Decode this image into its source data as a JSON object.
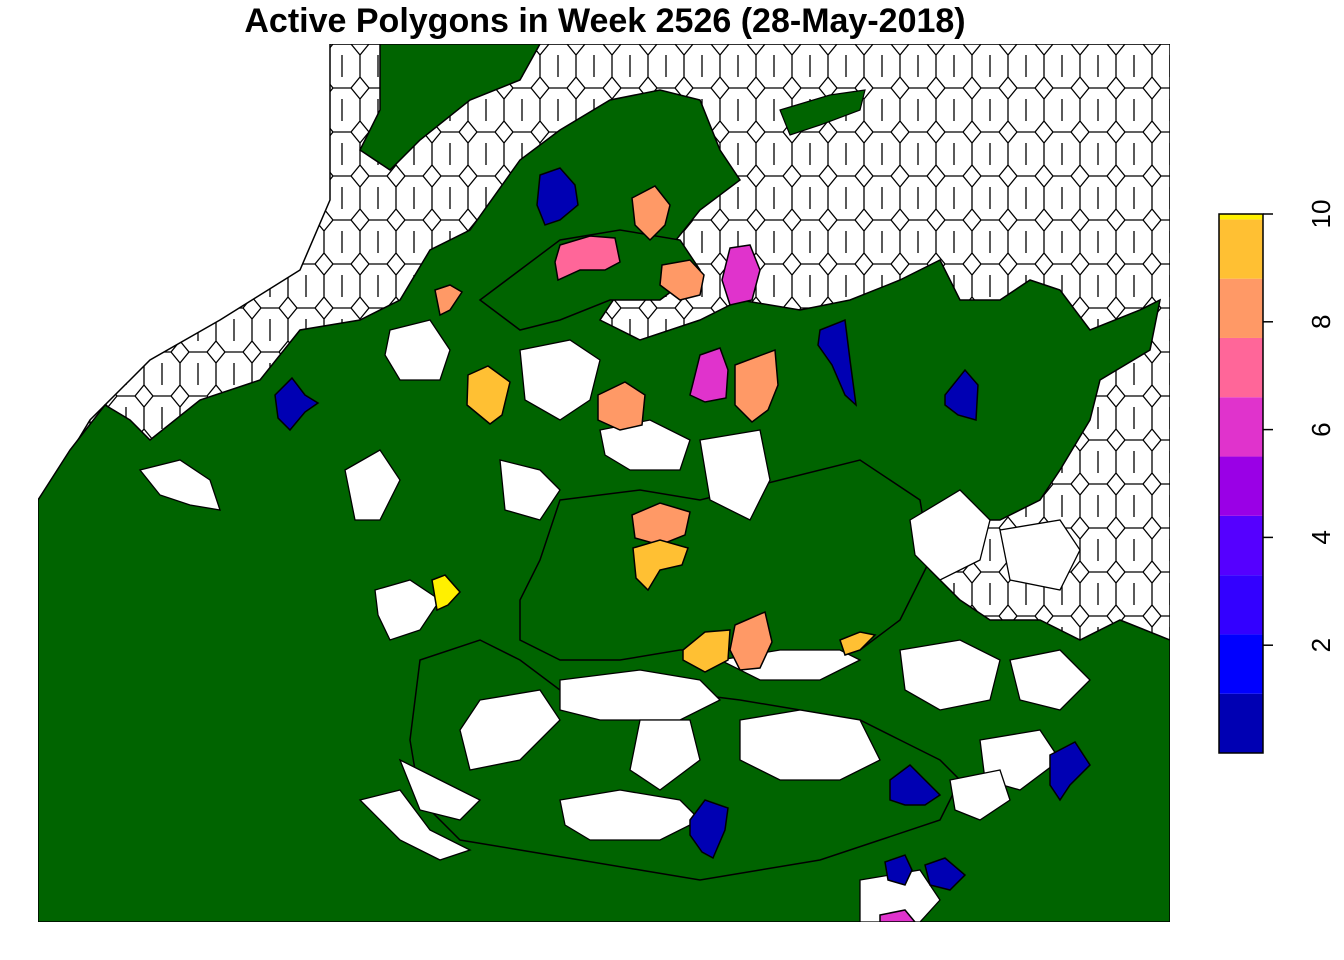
{
  "title": "Active Polygons in Week 2526 (28-May-2018)",
  "colors": {
    "background_land": "#006400",
    "inactive_polygon": "#ffffff",
    "outline": "#000000"
  },
  "legend": {
    "type": "color-bar",
    "placement": "right",
    "range": [
      0,
      10
    ],
    "ticks": [
      "2",
      "4",
      "6",
      "8",
      "10"
    ],
    "tick_values": [
      2,
      4,
      6,
      8,
      10
    ],
    "bins": [
      {
        "from": 0,
        "to": 1.1,
        "color": "#0000B3"
      },
      {
        "from": 1.1,
        "to": 2.2,
        "color": "#0000FF"
      },
      {
        "from": 2.2,
        "to": 3.3,
        "color": "#3300FF"
      },
      {
        "from": 3.3,
        "to": 4.4,
        "color": "#5500FF"
      },
      {
        "from": 4.4,
        "to": 5.5,
        "color": "#9A00E6"
      },
      {
        "from": 5.5,
        "to": 6.6,
        "color": "#E033CC"
      },
      {
        "from": 6.6,
        "to": 7.7,
        "color": "#FF6699"
      },
      {
        "from": 7.7,
        "to": 8.8,
        "color": "#FF9966"
      },
      {
        "from": 8.8,
        "to": 9.9,
        "color": "#FFC033"
      },
      {
        "from": 9.9,
        "to": 10.5,
        "color": "#FFF000"
      }
    ]
  },
  "active_polygons": [
    {
      "value": 1,
      "color": "#0000B3"
    },
    {
      "value": 1,
      "color": "#0000B3"
    },
    {
      "value": 1,
      "color": "#0000B3"
    },
    {
      "value": 1,
      "color": "#0000B3"
    },
    {
      "value": 1,
      "color": "#0000B3"
    },
    {
      "value": 1,
      "color": "#0000B3"
    },
    {
      "value": 1,
      "color": "#0000B3"
    },
    {
      "value": 1,
      "color": "#0000B3"
    },
    {
      "value": 1,
      "color": "#0000B3"
    },
    {
      "value": 5,
      "color": "#E033CC"
    },
    {
      "value": 5,
      "color": "#E033CC"
    },
    {
      "value": 5,
      "color": "#E033CC"
    },
    {
      "value": 6,
      "color": "#FF6699"
    },
    {
      "value": 7,
      "color": "#FF9966"
    },
    {
      "value": 7,
      "color": "#FF9966"
    },
    {
      "value": 7,
      "color": "#FF9966"
    },
    {
      "value": 7,
      "color": "#FF9966"
    },
    {
      "value": 7,
      "color": "#FF9966"
    },
    {
      "value": 7,
      "color": "#FF9966"
    },
    {
      "value": 7,
      "color": "#FF9966"
    },
    {
      "value": 8,
      "color": "#FFC033"
    },
    {
      "value": 8,
      "color": "#FFC033"
    },
    {
      "value": 8,
      "color": "#FFC033"
    },
    {
      "value": 8,
      "color": "#FFC033"
    },
    {
      "value": 10,
      "color": "#FFF000"
    }
  ]
}
